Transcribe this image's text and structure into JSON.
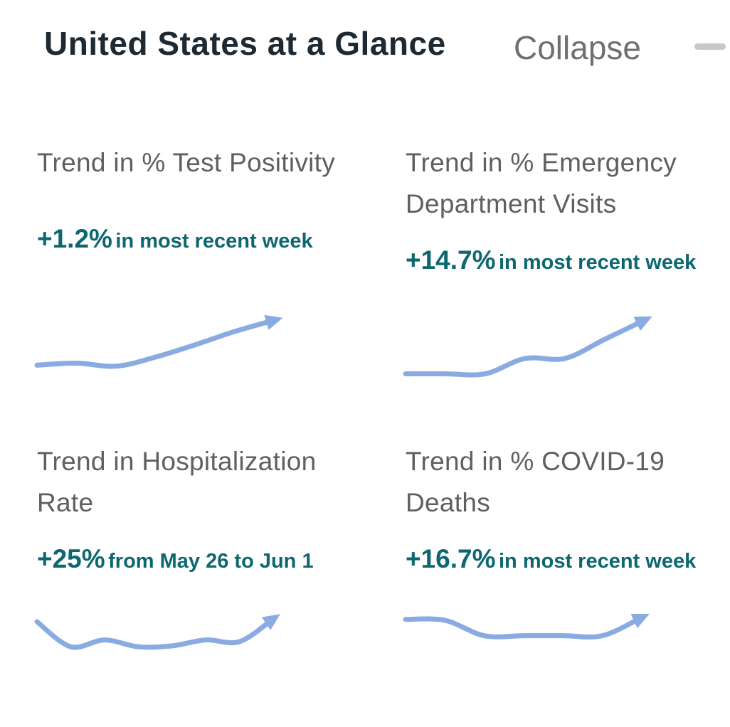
{
  "header": {
    "title": "United States at a Glance",
    "collapse_label": "Collapse",
    "collapse_icon": "minus-icon"
  },
  "colors": {
    "title": "#1d2a33",
    "label": "#5f5f5f",
    "stat": "#0d6770",
    "trend_line": "#8aabe2"
  },
  "cards": [
    {
      "title": "Trend in % Test Positivity",
      "stat_value": "+1.2%",
      "stat_text": "in most recent week",
      "trend_icon": "trend-arrow-icon",
      "trend": [
        0.12,
        0.16,
        0.1,
        0.28,
        0.52,
        0.78,
        1.0
      ]
    },
    {
      "title": "Trend in % Emergency Department Visits",
      "stat_value": "+14.7%",
      "stat_text": "in most recent week",
      "trend_icon": "trend-arrow-icon",
      "trend": [
        0.02,
        0.02,
        0.02,
        0.3,
        0.3,
        0.65,
        1.0
      ]
    },
    {
      "title": "Trend in Hospitalization Rate",
      "stat_value": "+25%",
      "stat_text": "from May 26 to Jun 1",
      "trend_icon": "trend-arrow-icon",
      "trend": [
        0.9,
        0.02,
        0.26,
        0.02,
        0.05,
        0.26,
        0.2,
        1.0
      ]
    },
    {
      "title": "Trend in % COVID-19 Deaths",
      "stat_value": "+16.7%",
      "stat_text": "in most recent week",
      "trend_icon": "trend-arrow-icon",
      "trend": [
        0.9,
        0.85,
        0.05,
        0.05,
        0.05,
        0.05,
        1.0
      ]
    }
  ]
}
